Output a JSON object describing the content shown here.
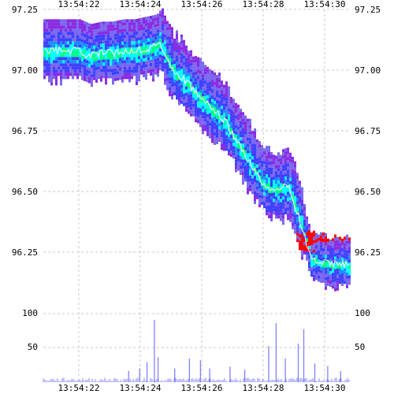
{
  "chart_data": {
    "type": "heatmap",
    "title": "",
    "xlabel": "",
    "ylabel": "",
    "time_ticks": [
      "13:54:22",
      "13:54:24",
      "13:54:26",
      "13:54:28",
      "13:54:30"
    ],
    "price_ticks": [
      "97.25",
      "97.00",
      "96.75",
      "96.50",
      "96.25"
    ],
    "volume_ticks": [
      "100",
      "50"
    ],
    "price_range": [
      96.02,
      97.25
    ],
    "volume_range": [
      0,
      110
    ],
    "grid": true,
    "grid_style": "dashed",
    "heatmap_palette": [
      "#8a2be2",
      "#7b68ee",
      "#4040ff",
      "#1e90ff",
      "#00ffff",
      "#00ff7f",
      "#ff0000"
    ],
    "mid_price_color": "#ffffff",
    "volume_color": "#8080ff",
    "price_path": [
      {
        "t": 0.0,
        "p": 97.08
      },
      {
        "t": 0.06,
        "p": 97.06
      },
      {
        "t": 0.12,
        "p": 97.07
      },
      {
        "t": 0.18,
        "p": 97.07
      },
      {
        "t": 0.24,
        "p": 97.08
      },
      {
        "t": 0.3,
        "p": 97.08
      },
      {
        "t": 0.36,
        "p": 97.09
      },
      {
        "t": 0.42,
        "p": 97.1
      },
      {
        "t": 0.44,
        "p": 97.12
      },
      {
        "t": 0.48,
        "p": 97.04
      },
      {
        "t": 0.52,
        "p": 96.99
      },
      {
        "t": 0.56,
        "p": 96.97
      },
      {
        "t": 0.62,
        "p": 96.92
      },
      {
        "t": 0.68,
        "p": 96.87
      },
      {
        "t": 0.74,
        "p": 96.83
      },
      {
        "t": 0.8,
        "p": 96.78
      },
      {
        "t": 0.86,
        "p": 96.7
      },
      {
        "t": 0.92,
        "p": 96.63
      },
      {
        "t": 0.98,
        "p": 96.55
      },
      {
        "t": 1.02,
        "p": 96.52
      },
      {
        "t": 1.08,
        "p": 96.51
      },
      {
        "t": 1.14,
        "p": 96.52
      },
      {
        "t": 1.2,
        "p": 96.38
      },
      {
        "t": 1.26,
        "p": 96.22
      },
      {
        "t": 1.32,
        "p": 96.21
      },
      {
        "t": 1.38,
        "p": 96.2
      },
      {
        "t": 1.44,
        "p": 96.2
      }
    ],
    "volume_spikes": [
      {
        "t": 0.27,
        "v": 18
      },
      {
        "t": 0.33,
        "v": 22
      },
      {
        "t": 0.37,
        "v": 32
      },
      {
        "t": 0.41,
        "v": 100
      },
      {
        "t": 0.43,
        "v": 40
      },
      {
        "t": 0.52,
        "v": 22
      },
      {
        "t": 0.6,
        "v": 38
      },
      {
        "t": 0.66,
        "v": 35
      },
      {
        "t": 0.71,
        "v": 22
      },
      {
        "t": 0.82,
        "v": 25
      },
      {
        "t": 0.9,
        "v": 20
      },
      {
        "t": 1.03,
        "v": 58
      },
      {
        "t": 1.07,
        "v": 95
      },
      {
        "t": 1.12,
        "v": 38
      },
      {
        "t": 1.19,
        "v": 62
      },
      {
        "t": 1.22,
        "v": 85
      },
      {
        "t": 1.28,
        "v": 30
      },
      {
        "t": 1.35,
        "v": 26
      },
      {
        "t": 1.42,
        "v": 18
      }
    ]
  }
}
